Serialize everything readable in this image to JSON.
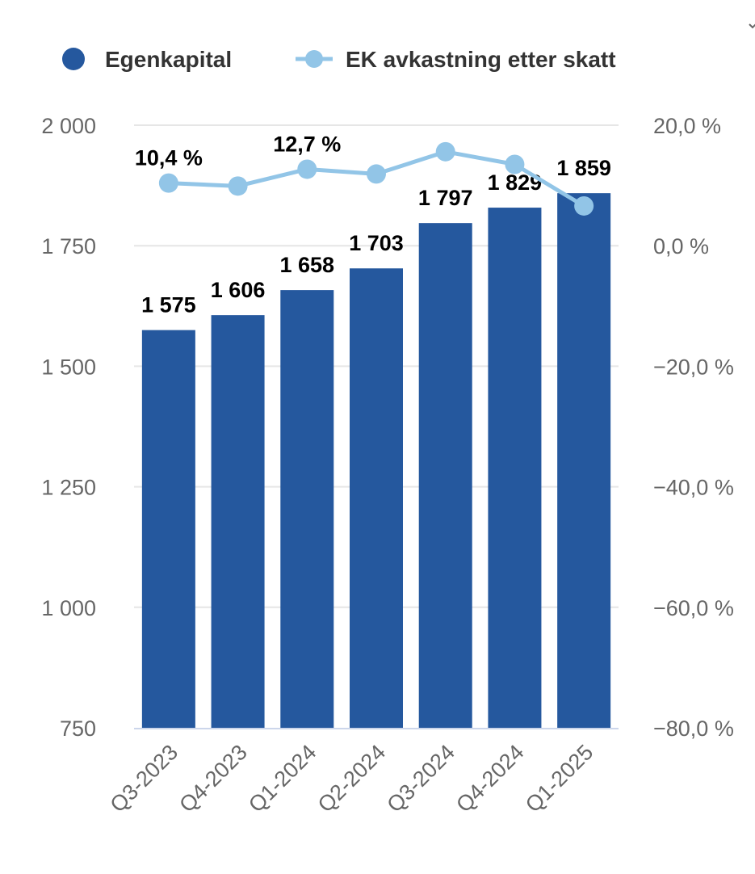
{
  "colors": {
    "bar": "#25589E",
    "line": "#92C5E7",
    "grid": "#E6E6E6",
    "axis": "#CCD6EB",
    "text": "#333333",
    "tick": "#666666"
  },
  "chart_data": {
    "type": "bar",
    "categories": [
      "Q3-2023",
      "Q4-2023",
      "Q1-2024",
      "Q2-2024",
      "Q3-2024",
      "Q4-2024",
      "Q1-2025"
    ],
    "series": [
      {
        "name": "Egenkapital",
        "type": "bar",
        "axis": "left",
        "values": [
          1575,
          1606,
          1658,
          1703,
          1797,
          1829,
          1859
        ],
        "labels": [
          "1 575",
          "1 606",
          "1 658",
          "1 703",
          "1 797",
          "1 829",
          "1 859"
        ]
      },
      {
        "name": "EK avkastning etter skatt",
        "type": "line",
        "axis": "right",
        "values": [
          10.4,
          9.9,
          12.7,
          11.9,
          15.6,
          13.5,
          6.6
        ],
        "labels": [
          "10,4 %",
          "",
          "12,7 %",
          "",
          "",
          "",
          ""
        ]
      }
    ],
    "y_left": {
      "range": [
        750,
        2000
      ],
      "ticks": [
        750,
        1000,
        1250,
        1500,
        1750,
        2000
      ],
      "tick_labels": [
        "750",
        "1 000",
        "1 250",
        "1 500",
        "1 750",
        "2 000"
      ]
    },
    "y_right": {
      "range": [
        -80,
        20
      ],
      "ticks": [
        -80,
        -60,
        -40,
        -20,
        0,
        20
      ],
      "tick_labels": [
        "−80,0 %",
        "−60,0 %",
        "−40,0 %",
        "−20,0 %",
        "0,0 %",
        "20,0 %"
      ]
    },
    "legend_position": "top",
    "grid": true
  }
}
